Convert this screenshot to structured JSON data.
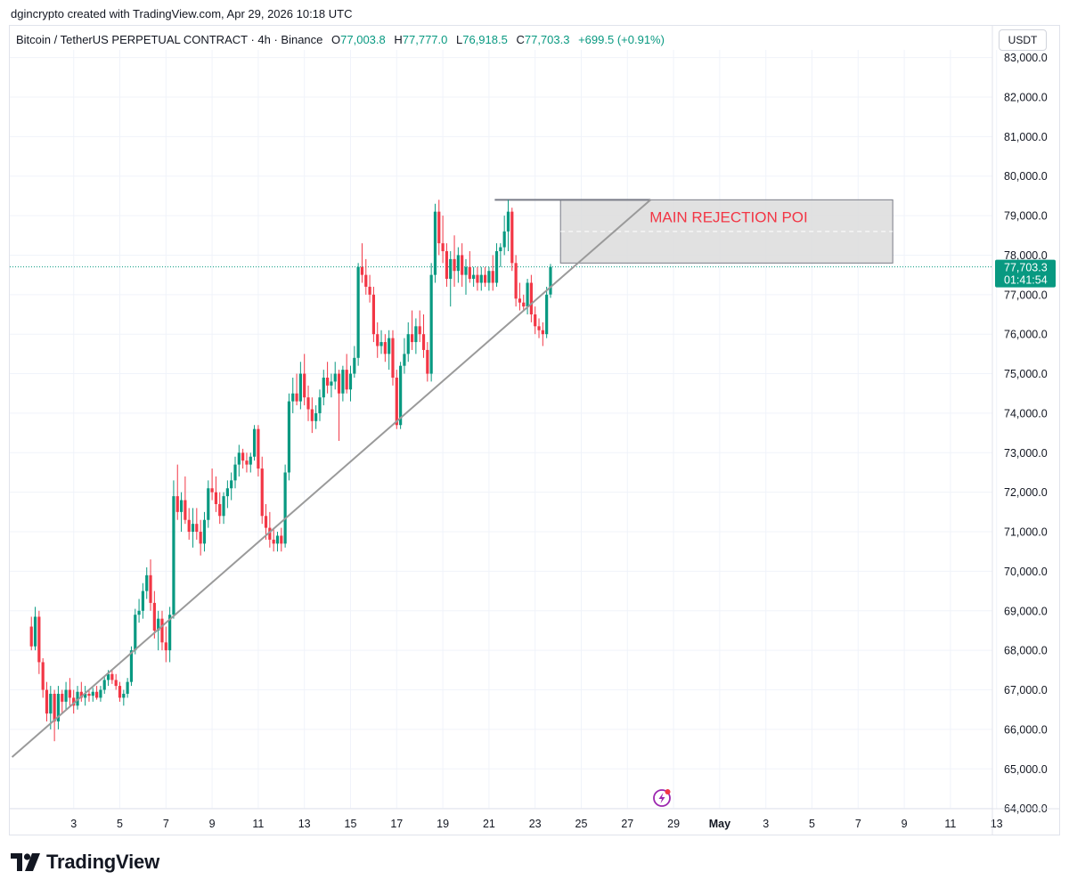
{
  "credit": "dgincrypto created with TradingView.com, Apr 29, 2026 10:18 UTC",
  "header": {
    "symbol": "Bitcoin / TetherUS PERPETUAL CONTRACT · 4h · Binance",
    "open_label": "O",
    "open": "77,003.8",
    "high_label": "H",
    "high": "77,777.0",
    "low_label": "L",
    "low": "76,918.5",
    "close_label": "C",
    "close": "77,703.3",
    "change": "+699.5 (+0.91%)"
  },
  "currency": "USDT",
  "last_price": {
    "price": "77,703.3",
    "countdown": "01:41:54"
  },
  "logo": {
    "text": "TradingView",
    "icon": "tradingview-logo-icon"
  },
  "bolt_icon": "lightning-icon",
  "colors": {
    "up": "#089981",
    "down": "#F23645",
    "zone": "#dcdcdc",
    "annotation": "#F23645",
    "line": "#9a9a9a"
  },
  "chart_data": {
    "type": "candlestick",
    "timeframe": "4h",
    "y_axis": {
      "min": 64000,
      "max": 83000,
      "step": 1000,
      "tick_labels": [
        "83,000.0",
        "82,000.0",
        "81,000.0",
        "80,000.0",
        "79,000.0",
        "78,000.0",
        "77,000.0",
        "76,000.0",
        "75,000.0",
        "74,000.0",
        "73,000.0",
        "72,000.0",
        "71,000.0",
        "70,000.0",
        "69,000.0",
        "68,000.0",
        "67,000.0",
        "66,000.0",
        "65,000.0",
        "64,000.0"
      ]
    },
    "x_axis": {
      "ticks": [
        {
          "day": 3,
          "label": "3"
        },
        {
          "day": 5,
          "label": "5"
        },
        {
          "day": 7,
          "label": "7"
        },
        {
          "day": 9,
          "label": "9"
        },
        {
          "day": 11,
          "label": "11"
        },
        {
          "day": 13,
          "label": "13"
        },
        {
          "day": 15,
          "label": "15"
        },
        {
          "day": 17,
          "label": "17"
        },
        {
          "day": 19,
          "label": "19"
        },
        {
          "day": 21,
          "label": "21"
        },
        {
          "day": 23,
          "label": "23"
        },
        {
          "day": 25,
          "label": "25"
        },
        {
          "day": 27,
          "label": "27"
        },
        {
          "day": 29,
          "label": "29"
        },
        {
          "day": 31,
          "label": "May"
        },
        {
          "day": 33,
          "label": "3"
        },
        {
          "day": 35,
          "label": "5"
        },
        {
          "day": 37,
          "label": "7"
        },
        {
          "day": 39,
          "label": "9"
        },
        {
          "day": 41,
          "label": "11"
        },
        {
          "day": 43,
          "label": "13"
        }
      ]
    },
    "candles": [
      [
        1.167,
        68600,
        68850,
        68000,
        68100
      ],
      [
        1.333,
        68100,
        69100,
        68000,
        68850
      ],
      [
        1.5,
        68850,
        69000,
        67400,
        67700
      ],
      [
        1.667,
        67700,
        67800,
        66800,
        67000
      ],
      [
        1.833,
        67000,
        67200,
        66200,
        66400
      ],
      [
        2.0,
        66400,
        67100,
        66000,
        66900
      ],
      [
        2.167,
        66900,
        67000,
        65700,
        66200
      ],
      [
        2.333,
        66200,
        67100,
        66000,
        66900
      ],
      [
        2.5,
        66900,
        67000,
        66400,
        66700
      ],
      [
        2.667,
        66700,
        67200,
        66500,
        67000
      ],
      [
        2.833,
        67000,
        67300,
        66600,
        66800
      ],
      [
        3.0,
        66800,
        67000,
        66400,
        66600
      ],
      [
        3.167,
        66600,
        67100,
        66500,
        66950
      ],
      [
        3.333,
        66950,
        67200,
        66700,
        66800
      ],
      [
        3.5,
        66800,
        67100,
        66600,
        66900
      ],
      [
        3.667,
        66900,
        67000,
        66700,
        66850
      ],
      [
        3.833,
        66850,
        67050,
        66700,
        66950
      ],
      [
        4.0,
        66950,
        67100,
        66750,
        66800
      ],
      [
        4.167,
        66800,
        67100,
        66700,
        67000
      ],
      [
        4.333,
        67000,
        67350,
        66900,
        67250
      ],
      [
        4.5,
        67250,
        67500,
        67100,
        67400
      ],
      [
        4.667,
        67400,
        67500,
        67150,
        67250
      ],
      [
        4.833,
        67250,
        67400,
        67000,
        67100
      ],
      [
        5.0,
        67100,
        67200,
        66700,
        66800
      ],
      [
        5.167,
        66800,
        67000,
        66600,
        66900
      ],
      [
        5.333,
        66900,
        67300,
        66800,
        67200
      ],
      [
        5.5,
        67200,
        68100,
        67100,
        68000
      ],
      [
        5.667,
        68000,
        69050,
        67900,
        68900
      ],
      [
        5.833,
        68900,
        69300,
        68700,
        69000
      ],
      [
        6.0,
        69000,
        69700,
        68800,
        69500
      ],
      [
        6.167,
        69500,
        70100,
        69300,
        69900
      ],
      [
        6.333,
        69900,
        70300,
        69000,
        69200
      ],
      [
        6.5,
        69200,
        69500,
        68300,
        68500
      ],
      [
        6.667,
        68500,
        69000,
        68000,
        68800
      ],
      [
        6.833,
        68800,
        69000,
        68000,
        68200
      ],
      [
        7.0,
        68200,
        68600,
        67700,
        68000
      ],
      [
        7.167,
        68000,
        69100,
        67700,
        68900
      ],
      [
        7.333,
        68900,
        72300,
        68800,
        71900
      ],
      [
        7.5,
        71900,
        72700,
        71300,
        71500
      ],
      [
        7.667,
        71500,
        72000,
        71000,
        71800
      ],
      [
        7.833,
        71800,
        72400,
        71200,
        71300
      ],
      [
        8.0,
        71300,
        71600,
        70800,
        71000
      ],
      [
        8.167,
        71000,
        71600,
        70600,
        71200
      ],
      [
        8.333,
        71200,
        71600,
        70800,
        71000
      ],
      [
        8.5,
        71000,
        71300,
        70400,
        70700
      ],
      [
        8.667,
        70700,
        71500,
        70500,
        71300
      ],
      [
        8.833,
        71300,
        72300,
        71100,
        72100
      ],
      [
        9.0,
        72100,
        72600,
        71800,
        72000
      ],
      [
        9.167,
        72000,
        72400,
        71500,
        71700
      ],
      [
        9.333,
        71700,
        72000,
        71200,
        71400
      ],
      [
        9.5,
        71400,
        72000,
        71200,
        71900
      ],
      [
        9.667,
        71900,
        72300,
        71600,
        72100
      ],
      [
        9.833,
        72100,
        72500,
        71800,
        72300
      ],
      [
        10.0,
        72300,
        72900,
        72100,
        72700
      ],
      [
        10.167,
        72700,
        73200,
        72400,
        73000
      ],
      [
        10.333,
        73000,
        73100,
        72600,
        72800
      ],
      [
        10.5,
        72800,
        73000,
        72500,
        72700
      ],
      [
        10.667,
        72700,
        73000,
        72500,
        72900
      ],
      [
        10.833,
        72900,
        73700,
        72800,
        73600
      ],
      [
        11.0,
        73600,
        73700,
        72400,
        72600
      ],
      [
        11.167,
        72600,
        72900,
        71200,
        71400
      ],
      [
        11.333,
        71400,
        71700,
        70800,
        71100
      ],
      [
        11.5,
        71100,
        71500,
        70600,
        70800
      ],
      [
        11.667,
        70800,
        71100,
        70500,
        70700
      ],
      [
        11.833,
        70700,
        71000,
        70500,
        70900
      ],
      [
        12.0,
        70900,
        71100,
        70500,
        70700
      ],
      [
        12.167,
        70700,
        72700,
        70600,
        72500
      ],
      [
        12.333,
        72500,
        74500,
        72300,
        74300
      ],
      [
        12.5,
        74300,
        74900,
        74000,
        74500
      ],
      [
        12.667,
        74500,
        75000,
        74200,
        74300
      ],
      [
        12.833,
        74300,
        75300,
        74100,
        75000
      ],
      [
        13.0,
        75000,
        75500,
        74200,
        74400
      ],
      [
        13.167,
        74400,
        74700,
        73800,
        74100
      ],
      [
        13.333,
        74100,
        74400,
        73500,
        73800
      ],
      [
        13.5,
        73800,
        74200,
        73600,
        74000
      ],
      [
        13.667,
        74000,
        74600,
        73800,
        74400
      ],
      [
        13.833,
        74400,
        75100,
        74200,
        74900
      ],
      [
        14.0,
        74900,
        75300,
        74500,
        74700
      ],
      [
        14.167,
        74700,
        75000,
        74400,
        74800
      ],
      [
        14.333,
        74800,
        75300,
        74600,
        75000
      ],
      [
        14.5,
        75000,
        75100,
        73300,
        74500
      ],
      [
        14.667,
        74500,
        75200,
        74300,
        75100
      ],
      [
        14.833,
        75100,
        75500,
        74500,
        74600
      ],
      [
        15.0,
        74600,
        75200,
        74300,
        75000
      ],
      [
        15.167,
        75000,
        75700,
        74900,
        75400
      ],
      [
        15.333,
        75400,
        77800,
        75200,
        77700
      ],
      [
        15.5,
        77700,
        78300,
        77300,
        77500
      ],
      [
        15.667,
        77500,
        77900,
        77000,
        77200
      ],
      [
        15.833,
        77200,
        77500,
        76800,
        77000
      ],
      [
        16.0,
        77000,
        77200,
        75800,
        76000
      ],
      [
        16.167,
        76000,
        76300,
        75400,
        75700
      ],
      [
        16.333,
        75700,
        76100,
        75500,
        75800
      ],
      [
        16.5,
        75800,
        76000,
        75300,
        75500
      ],
      [
        16.667,
        75500,
        76100,
        75100,
        75900
      ],
      [
        16.833,
        75900,
        76100,
        74700,
        74900
      ],
      [
        17.0,
        74900,
        75100,
        73600,
        73700
      ],
      [
        17.167,
        73700,
        75300,
        73600,
        75200
      ],
      [
        17.333,
        75200,
        75900,
        75000,
        75500
      ],
      [
        17.5,
        75500,
        76300,
        75300,
        76000
      ],
      [
        17.667,
        76000,
        76600,
        75600,
        75800
      ],
      [
        17.833,
        75800,
        76400,
        75500,
        76200
      ],
      [
        18.0,
        76200,
        76600,
        75800,
        76000
      ],
      [
        18.167,
        76000,
        76500,
        75400,
        75600
      ],
      [
        18.333,
        75600,
        75800,
        74800,
        75000
      ],
      [
        18.5,
        75000,
        77800,
        74800,
        77500
      ],
      [
        18.667,
        77500,
        79300,
        77300,
        79100
      ],
      [
        18.833,
        79100,
        79400,
        78000,
        78300
      ],
      [
        19.0,
        78300,
        79000,
        77800,
        78100
      ],
      [
        19.167,
        78100,
        78300,
        77200,
        77400
      ],
      [
        19.333,
        77400,
        78100,
        76700,
        77900
      ],
      [
        19.5,
        77900,
        78500,
        77200,
        77600
      ],
      [
        19.667,
        77600,
        78200,
        77300,
        78000
      ],
      [
        19.833,
        78000,
        78300,
        77200,
        77500
      ],
      [
        20.0,
        77500,
        77900,
        77000,
        77700
      ],
      [
        20.167,
        77700,
        78100,
        77300,
        77400
      ],
      [
        20.333,
        77400,
        77700,
        77200,
        77500
      ],
      [
        20.5,
        77500,
        77700,
        77100,
        77300
      ],
      [
        20.667,
        77300,
        77700,
        77100,
        77500
      ],
      [
        20.833,
        77500,
        77700,
        77200,
        77300
      ],
      [
        21.0,
        77300,
        77700,
        77100,
        77600
      ],
      [
        21.167,
        77600,
        78000,
        77100,
        77300
      ],
      [
        21.333,
        77300,
        78300,
        77200,
        78100
      ],
      [
        21.5,
        78100,
        78300,
        77700,
        78200
      ],
      [
        21.667,
        78200,
        79000,
        78000,
        78600
      ],
      [
        21.833,
        78600,
        79400,
        78100,
        79100
      ],
      [
        22.0,
        79100,
        79200,
        77600,
        77800
      ],
      [
        22.167,
        77800,
        78000,
        76700,
        76900
      ],
      [
        22.333,
        76900,
        77300,
        76600,
        76800
      ],
      [
        22.5,
        76800,
        77000,
        76600,
        76700
      ],
      [
        22.667,
        76700,
        77400,
        76500,
        77300
      ],
      [
        22.833,
        77300,
        77500,
        76300,
        76500
      ],
      [
        23.0,
        76500,
        76700,
        76000,
        76200
      ],
      [
        23.167,
        76200,
        76400,
        75900,
        76100
      ],
      [
        23.333,
        76100,
        76300,
        75700,
        76000
      ],
      [
        23.5,
        76000,
        77200,
        75900,
        77000
      ],
      [
        23.667,
        77003.8,
        77777,
        76918.5,
        77703.3
      ]
    ],
    "trendline": {
      "from": {
        "day": 0.33,
        "price": 65300
      },
      "to": {
        "day": 28.0,
        "price": 79400
      }
    },
    "resistance_line": {
      "from_day": 21.25,
      "to_day": 28.0,
      "price": 79400
    },
    "zone": {
      "from_day": 24.1,
      "to_day": 38.5,
      "top": 79400,
      "bottom": 77800,
      "mid": 78600,
      "label": "MAIN REJECTION POI"
    },
    "last_price_line": 77703.3
  }
}
